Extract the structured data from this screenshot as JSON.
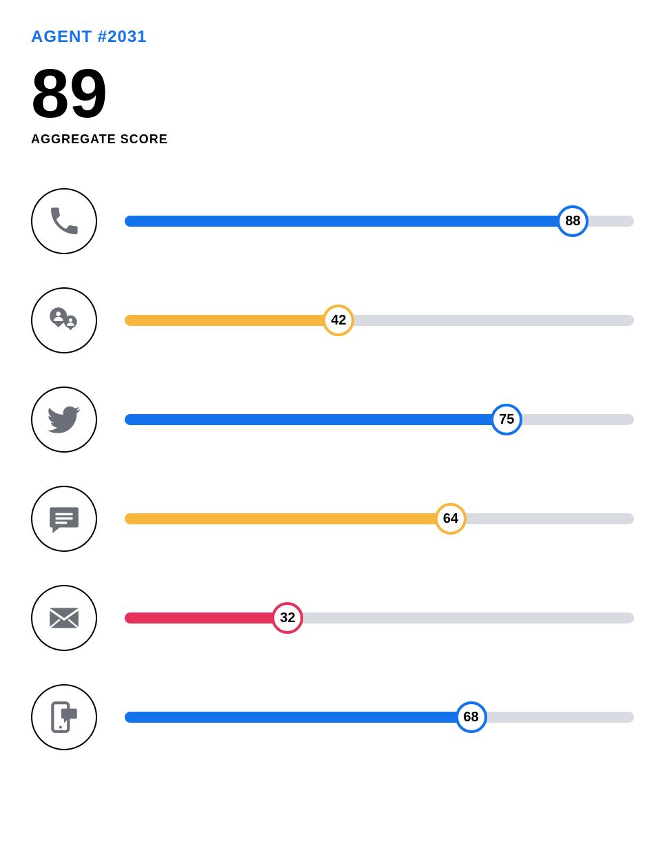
{
  "header": {
    "title": "AGENT #2031",
    "title_color": "#1572ed"
  },
  "score": {
    "value": "89",
    "label": "AGGREGATE SCORE"
  },
  "track_color": "#d9dbe0",
  "icon_color": "#6b6f78",
  "icon_circle_border": "#000000",
  "knob_bg": "#ffffff",
  "knob_text_color": "#000000",
  "max_value": 100,
  "rows": [
    {
      "icon": "phone",
      "value": 88,
      "color": "#1572ed"
    },
    {
      "icon": "chat-people",
      "value": 42,
      "color": "#f6b73c"
    },
    {
      "icon": "twitter",
      "value": 75,
      "color": "#1572ed"
    },
    {
      "icon": "message",
      "value": 64,
      "color": "#f6b73c"
    },
    {
      "icon": "mail",
      "value": 32,
      "color": "#e6325a"
    },
    {
      "icon": "mobile-chat",
      "value": 68,
      "color": "#1572ed"
    }
  ]
}
